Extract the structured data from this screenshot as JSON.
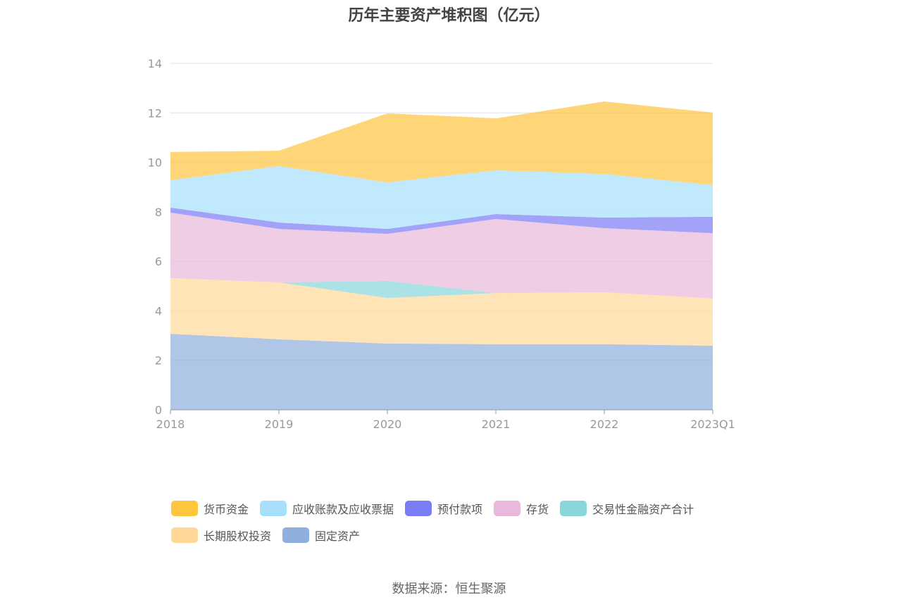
{
  "chart_data": {
    "type": "area",
    "stacked": true,
    "title": "历年主要资产堆积图（亿元）",
    "categories": [
      "2018",
      "2019",
      "2020",
      "2021",
      "2022",
      "2023Q1"
    ],
    "ylim": [
      0,
      14
    ],
    "yticks": [
      0,
      2,
      4,
      6,
      8,
      10,
      12,
      14
    ],
    "grid": true,
    "legend_position": "bottom",
    "series": [
      {
        "name": "固定资产",
        "color": "#8EAEDC",
        "values": [
          3.07,
          2.85,
          2.68,
          2.65,
          2.65,
          2.59
        ]
      },
      {
        "name": "长期股权投资",
        "color": "#FFD898",
        "values": [
          2.25,
          2.3,
          1.84,
          2.07,
          2.1,
          1.91
        ]
      },
      {
        "name": "交易性金融资产合计",
        "color": "#86D6DA",
        "values": [
          0,
          0,
          0.69,
          0,
          0,
          0
        ]
      },
      {
        "name": "存货",
        "color": "#E8B9DA",
        "values": [
          2.65,
          2.16,
          1.9,
          2.99,
          2.59,
          2.64
        ]
      },
      {
        "name": "预付款项",
        "color": "#7A7CF5",
        "values": [
          0.2,
          0.26,
          0.2,
          0.2,
          0.43,
          0.66
        ]
      },
      {
        "name": "应收账款及应收票据",
        "color": "#A6E0FC",
        "values": [
          1.11,
          2.28,
          1.88,
          1.77,
          1.76,
          1.28
        ]
      },
      {
        "name": "货币资金",
        "color": "#FFC53D",
        "values": [
          1.14,
          0.62,
          2.79,
          2.1,
          2.93,
          2.93
        ]
      }
    ],
    "legend_order": [
      "货币资金",
      "应收账款及应收票据",
      "预付款项",
      "存货",
      "交易性金融资产合计",
      "长期股权投资",
      "固定资产"
    ]
  },
  "source": "数据来源：恒生聚源"
}
